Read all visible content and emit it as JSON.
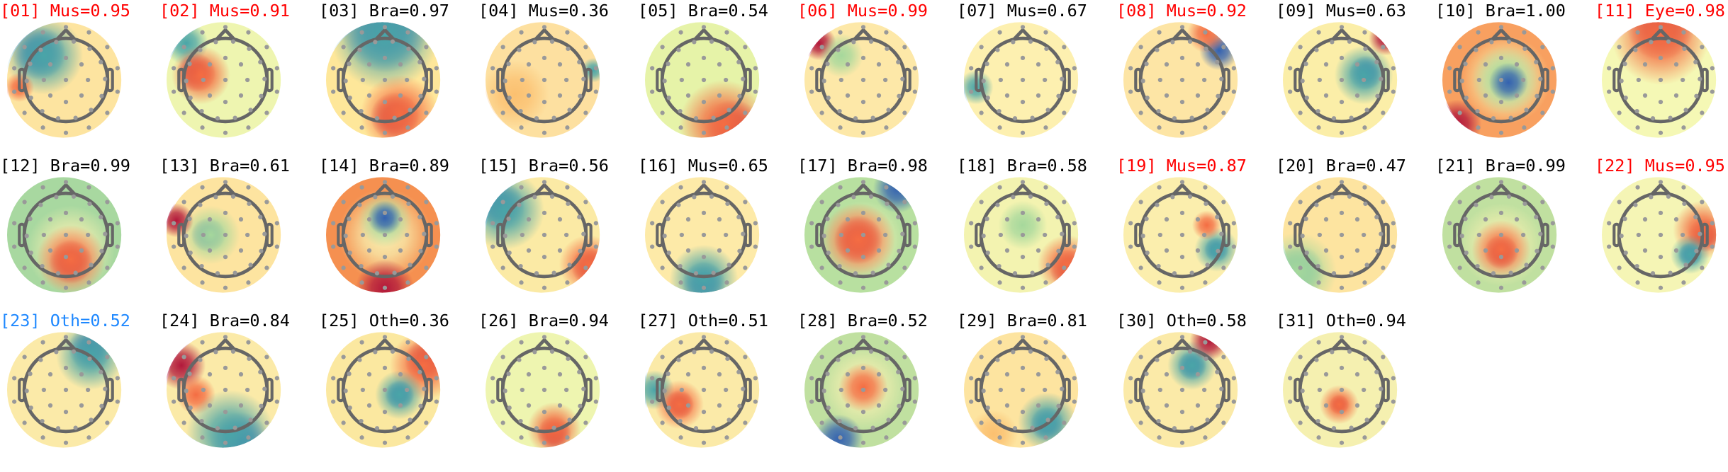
{
  "colors": {
    "artifact": "#ff0000",
    "brain": "#000000",
    "other_highlight": "#1e88ff"
  },
  "components": [
    {
      "title": "[01] Mus=0.95",
      "color": "#ff0000"
    },
    {
      "title": "[02] Mus=0.91",
      "color": "#ff0000"
    },
    {
      "title": "[03] Bra=0.97",
      "color": "#000000"
    },
    {
      "title": "[04] Mus=0.36",
      "color": "#000000"
    },
    {
      "title": "[05] Bra=0.54",
      "color": "#000000"
    },
    {
      "title": "[06] Mus=0.99",
      "color": "#ff0000"
    },
    {
      "title": "[07] Mus=0.67",
      "color": "#000000"
    },
    {
      "title": "[08] Mus=0.92",
      "color": "#ff0000"
    },
    {
      "title": "[09] Mus=0.63",
      "color": "#000000"
    },
    {
      "title": "[10] Bra=1.00",
      "color": "#000000"
    },
    {
      "title": "[11] Eye=0.98",
      "color": "#ff0000"
    },
    {
      "title": "[12] Bra=0.99",
      "color": "#000000"
    },
    {
      "title": "[13] Bra=0.61",
      "color": "#000000"
    },
    {
      "title": "[14] Bra=0.89",
      "color": "#000000"
    },
    {
      "title": "[15] Bra=0.56",
      "color": "#000000"
    },
    {
      "title": "[16] Mus=0.65",
      "color": "#000000"
    },
    {
      "title": "[17] Bra=0.98",
      "color": "#000000"
    },
    {
      "title": "[18] Bra=0.58",
      "color": "#000000"
    },
    {
      "title": "[19] Mus=0.87",
      "color": "#ff0000"
    },
    {
      "title": "[20] Bra=0.47",
      "color": "#000000"
    },
    {
      "title": "[21] Bra=0.99",
      "color": "#000000"
    },
    {
      "title": "[22] Mus=0.95",
      "color": "#ff0000"
    },
    {
      "title": "[23] Oth=0.52",
      "color": "#1e88ff"
    },
    {
      "title": "[24] Bra=0.84",
      "color": "#000000"
    },
    {
      "title": "[25] Oth=0.36",
      "color": "#000000"
    },
    {
      "title": "[26] Bra=0.94",
      "color": "#000000"
    },
    {
      "title": "[27] Oth=0.51",
      "color": "#000000"
    },
    {
      "title": "[28] Bra=0.52",
      "color": "#000000"
    },
    {
      "title": "[29] Bra=0.81",
      "color": "#000000"
    },
    {
      "title": "[30] Oth=0.58",
      "color": "#000000"
    },
    {
      "title": "[31] Oth=0.94",
      "color": "#000000"
    }
  ]
}
